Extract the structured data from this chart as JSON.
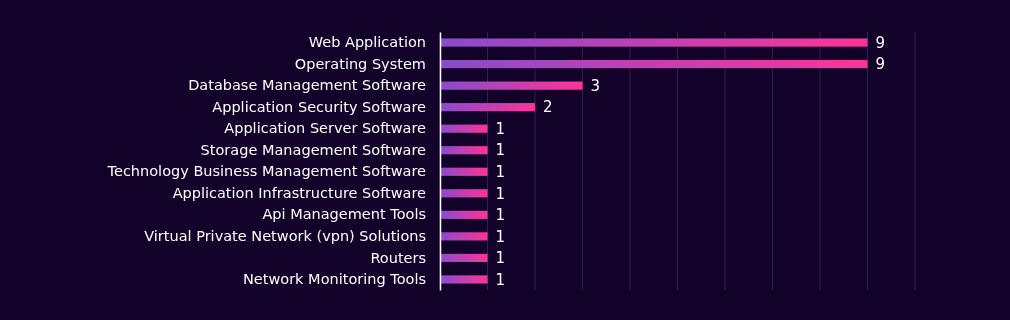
{
  "chart_data": {
    "type": "bar",
    "orientation": "horizontal",
    "categories": [
      "Web Application",
      "Operating System",
      "Database Management Software",
      "Application Security Software",
      "Application Server Software",
      "Storage Management Software",
      "Technology Business Management Software",
      "Application Infrastructure Software",
      "Api Management Tools",
      "Virtual Private Network (vpn) Solutions",
      "Routers",
      "Network Monitoring Tools"
    ],
    "values": [
      9,
      9,
      3,
      2,
      1,
      1,
      1,
      1,
      1,
      1,
      1,
      1
    ],
    "color": "#ff3399",
    "xlim": [
      0,
      10
    ],
    "xticks": [
      {
        "value": 0,
        "label": null
      },
      {
        "value": 1,
        "label": null
      },
      {
        "value": 2,
        "label": null
      },
      {
        "value": 3,
        "label": null
      },
      {
        "value": 4,
        "label": null
      },
      {
        "value": 5,
        "label": null
      },
      {
        "value": 6,
        "label": null
      },
      {
        "value": 7,
        "label": null
      },
      {
        "value": 8,
        "label": null
      },
      {
        "value": 9,
        "label": null
      },
      {
        "value": 10,
        "label": null
      }
    ],
    "grid": "x",
    "tick_labels": "y",
    "data_labels": true
  }
}
